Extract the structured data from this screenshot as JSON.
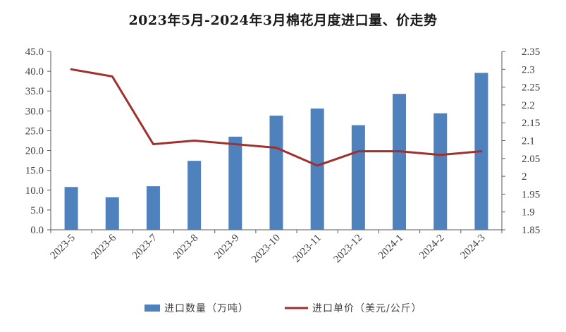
{
  "chart_data": {
    "type": "bar+line",
    "title": "2023年5月-2024年3月棉花月度进口量、价走势",
    "categories": [
      "2023-5",
      "2023-6",
      "2023-7",
      "2023-8",
      "2023-9",
      "2023-10",
      "2023-11",
      "2023-12",
      "2024-1",
      "2024-2",
      "2024-3"
    ],
    "series": [
      {
        "name": "进口数量（万吨）",
        "type": "bar",
        "axis": "left",
        "color": "#4f81bd",
        "values": [
          10.8,
          8.2,
          11.0,
          17.4,
          23.5,
          28.8,
          30.6,
          26.4,
          34.3,
          29.4,
          39.6
        ]
      },
      {
        "name": "进口单价（美元/公斤）",
        "type": "line",
        "axis": "right",
        "color": "#a0302d",
        "values": [
          2.3,
          2.28,
          2.09,
          2.1,
          2.09,
          2.08,
          2.03,
          2.07,
          2.07,
          2.06,
          2.07
        ]
      }
    ],
    "y_left": {
      "ylim": [
        0,
        45
      ],
      "ticks": [
        "0.0",
        "5.0",
        "10.0",
        "15.0",
        "20.0",
        "25.0",
        "30.0",
        "35.0",
        "40.0",
        "45.0"
      ]
    },
    "y_right": {
      "ylim": [
        1.85,
        2.35
      ],
      "ticks": [
        "1.85",
        "1.9",
        "1.95",
        "2",
        "2.05",
        "2.1",
        "2.15",
        "2.2",
        "2.25",
        "2.3",
        "2.35"
      ]
    },
    "grid": false,
    "legend_position": "bottom"
  }
}
